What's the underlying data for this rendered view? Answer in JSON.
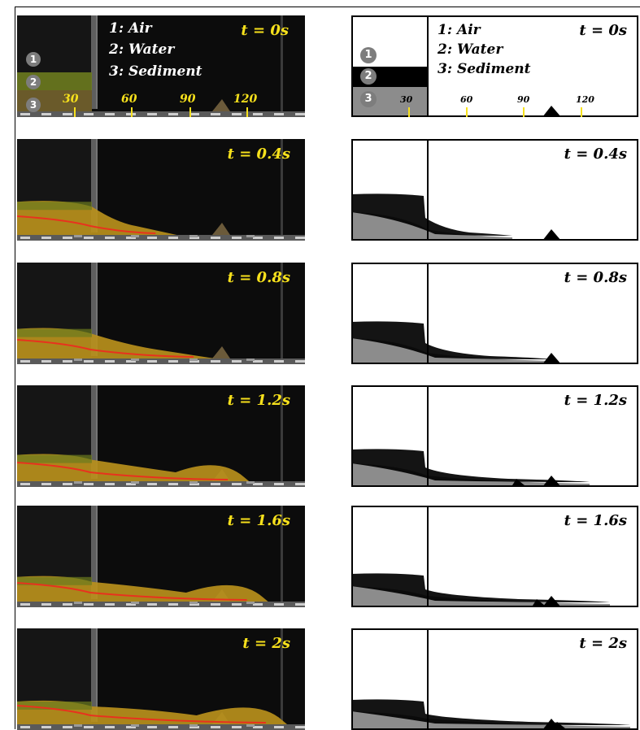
{
  "legend": {
    "items": [
      {
        "num": "1",
        "text": "1: Air"
      },
      {
        "num": "2",
        "text": "2: Water"
      },
      {
        "num": "3",
        "text": "3: Sediment"
      }
    ]
  },
  "scale_labels": [
    "30",
    "60",
    "90",
    "120"
  ],
  "colors": {
    "sim_sediment": "#8c8c8c",
    "sim_water": "#000000",
    "exp_background": "#0c0c0c",
    "exp_sediment": "#b8901c",
    "label_yellow": "#f7e11c",
    "interface_red": "#e8321e"
  },
  "frames": [
    {
      "time": "t = 0s"
    },
    {
      "time": "t = 0.4s"
    },
    {
      "time": "t = 0.8s"
    },
    {
      "time": "t = 1.2s"
    },
    {
      "time": "t = 1.6s"
    },
    {
      "time": "t = 2s"
    }
  ]
}
